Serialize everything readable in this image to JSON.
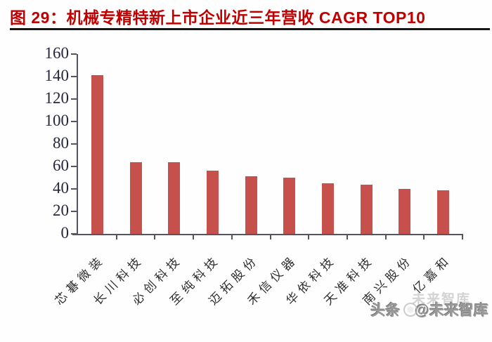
{
  "header": {
    "title": "图 29：机械专精特新上市企业近三年营收 CAGR TOP10"
  },
  "chart_data": {
    "type": "bar",
    "title": "机械专精特新上市企业近三年营收 CAGR TOP10",
    "categories": [
      "芯碁微装",
      "长川科技",
      "必创科技",
      "至纯科技",
      "迈拓股份",
      "禾信仪器",
      "华依科技",
      "天准科技",
      "南兴股份",
      "亿嘉和"
    ],
    "values": [
      141,
      64,
      64,
      56,
      51,
      50,
      45,
      44,
      40,
      39
    ],
    "xlabel": "",
    "ylabel": "",
    "ylim": [
      0,
      160
    ],
    "yticks": [
      0,
      20,
      40,
      60,
      80,
      100,
      120,
      140,
      160
    ],
    "grid": false,
    "legend_position": "none",
    "x_label_rotation_deg": 45,
    "bar_color": "#c5504c",
    "axis_color": "#55555e",
    "ytick_label_color": "#26263c",
    "xtick_label_color": "#2e2e2e"
  },
  "watermark": {
    "prefix": "头条",
    "handle": "@未来智库",
    "ghost_text": "未来智库",
    "logo": "circle-logo",
    "color": "#9a9a9a"
  },
  "styles": {
    "title_color": "#c00000",
    "divider_color": "#161616",
    "background": "#fefefe"
  }
}
